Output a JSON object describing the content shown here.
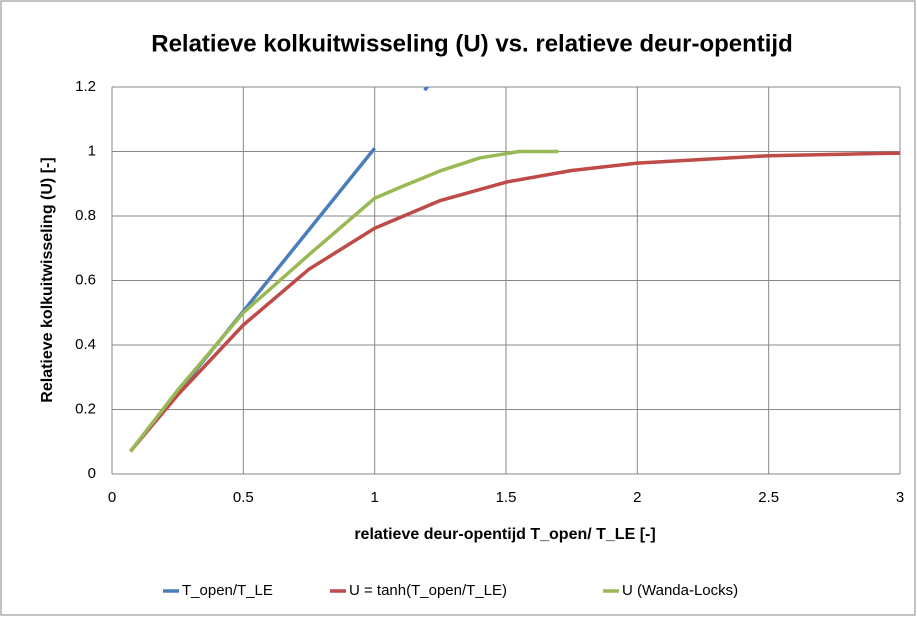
{
  "chart_data": {
    "type": "line",
    "title": "Relatieve kolkuitwisseling (U) vs. relatieve deur-opentijd",
    "x_label": "relatieve deur-opentijd  T_open/ T_LE [-]",
    "y_label": "Relatieve kolkuitwisseling (U)  [-]",
    "xlim": [
      0,
      3
    ],
    "xticks": [
      0,
      0.5,
      1,
      1.5,
      2,
      2.5,
      3
    ],
    "ylim": [
      0,
      1.2
    ],
    "yticks": [
      0,
      0.2,
      0.4,
      0.6,
      0.8,
      1,
      1.2
    ],
    "grid": true,
    "legend": "bottom",
    "series": [
      {
        "name": "T_open/T_LE",
        "color": "#4a7ebb",
        "x": [
          0.07,
          1.0,
          null,
          1.19,
          1.3
        ],
        "values": [
          0.07,
          1.01,
          null,
          1.19,
          1.3
        ]
      },
      {
        "name": "U = tanh(T_open/T_LE)",
        "color": "#be4b48",
        "x": [
          0.07,
          0.25,
          0.5,
          0.75,
          1,
          1.25,
          1.5,
          1.75,
          2,
          2.5,
          3
        ],
        "values": [
          0.07,
          0.245,
          0.462,
          0.635,
          0.762,
          0.848,
          0.905,
          0.941,
          0.964,
          0.987,
          0.995
        ]
      },
      {
        "name": "U (Wanda-Locks)",
        "color": "#98b954",
        "x": [
          0.07,
          0.25,
          0.5,
          0.75,
          1,
          1.1,
          1.25,
          1.4,
          1.55,
          1.7
        ],
        "values": [
          0.07,
          0.26,
          0.5,
          0.68,
          0.855,
          0.89,
          0.94,
          0.98,
          1.0,
          1.0
        ]
      }
    ]
  }
}
